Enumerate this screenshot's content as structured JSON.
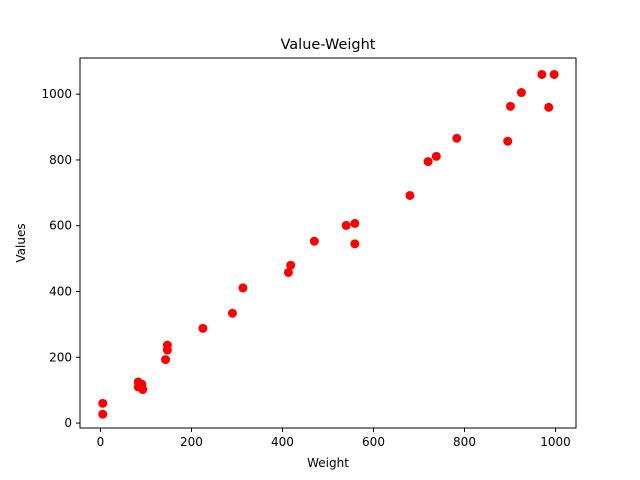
{
  "chart_data": {
    "type": "scatter",
    "title": "Value-Weight",
    "xlabel": "Weight",
    "ylabel": "Values",
    "xlim": [
      -45,
      1045
    ],
    "ylim": [
      -15,
      1110
    ],
    "xticks": [
      0,
      200,
      400,
      600,
      800,
      1000
    ],
    "yticks": [
      0,
      200,
      400,
      600,
      800,
      1000
    ],
    "xtick_labels": [
      "0",
      "200",
      "400",
      "600",
      "800",
      "1000"
    ],
    "ytick_labels": [
      "0",
      "200",
      "400",
      "600",
      "800",
      "1000"
    ],
    "grid": false,
    "marker_color": "#ff0000",
    "points": [
      {
        "x": 5,
        "y": 60
      },
      {
        "x": 5,
        "y": 27
      },
      {
        "x": 83,
        "y": 125
      },
      {
        "x": 83,
        "y": 110
      },
      {
        "x": 91,
        "y": 118
      },
      {
        "x": 93,
        "y": 102
      },
      {
        "x": 143,
        "y": 193
      },
      {
        "x": 147,
        "y": 222
      },
      {
        "x": 147,
        "y": 237
      },
      {
        "x": 225,
        "y": 288
      },
      {
        "x": 290,
        "y": 334
      },
      {
        "x": 313,
        "y": 411
      },
      {
        "x": 413,
        "y": 458
      },
      {
        "x": 418,
        "y": 480
      },
      {
        "x": 470,
        "y": 553
      },
      {
        "x": 540,
        "y": 601
      },
      {
        "x": 559,
        "y": 607
      },
      {
        "x": 559,
        "y": 545
      },
      {
        "x": 680,
        "y": 692
      },
      {
        "x": 720,
        "y": 795
      },
      {
        "x": 738,
        "y": 811
      },
      {
        "x": 783,
        "y": 866
      },
      {
        "x": 895,
        "y": 857
      },
      {
        "x": 901,
        "y": 963
      },
      {
        "x": 925,
        "y": 1005
      },
      {
        "x": 970,
        "y": 1060
      },
      {
        "x": 985,
        "y": 960
      },
      {
        "x": 997,
        "y": 1060
      }
    ]
  }
}
